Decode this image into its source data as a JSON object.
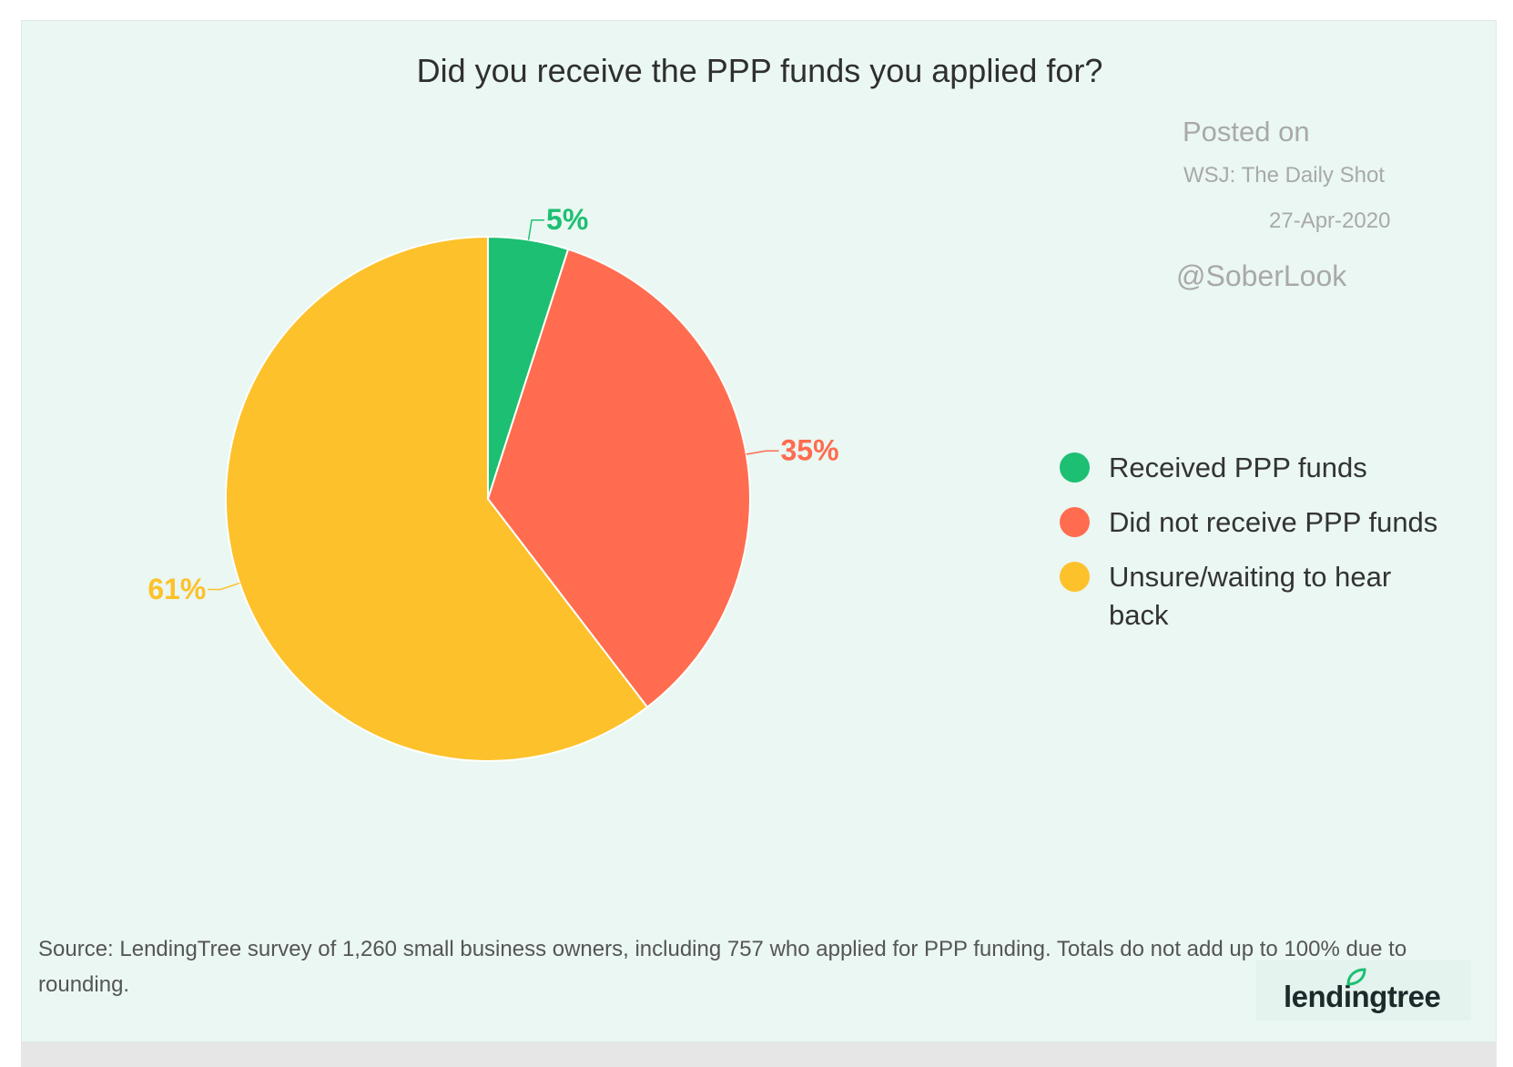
{
  "chart_data": {
    "type": "pie",
    "title": "Did you receive the PPP funds you applied for?",
    "slices": [
      {
        "label": "Received PPP funds",
        "value": 5,
        "value_label": "5%",
        "color": "#1dbf73"
      },
      {
        "label": "Did not receive PPP funds",
        "value": 35,
        "value_label": "35%",
        "color": "#ff6c4f"
      },
      {
        "label": "Unsure/waiting to hear back",
        "value": 61,
        "value_label": "61%",
        "color": "#fdc12b"
      }
    ],
    "legend_position": "right",
    "start_angle": "12 o'clock, clockwise"
  },
  "posted": {
    "line1": "Posted on",
    "line2": "WSJ: The Daily Shot",
    "line3": "27-Apr-2020",
    "handle": "@SoberLook"
  },
  "footnote": "Source: LendingTree survey of 1,260 small business owners, including 757 who applied for PPP funding. Totals do not add up to 100% due to rounding.",
  "logo": {
    "text": "lendingtree",
    "icon": "leaf-icon",
    "color": "#1dbf73"
  }
}
